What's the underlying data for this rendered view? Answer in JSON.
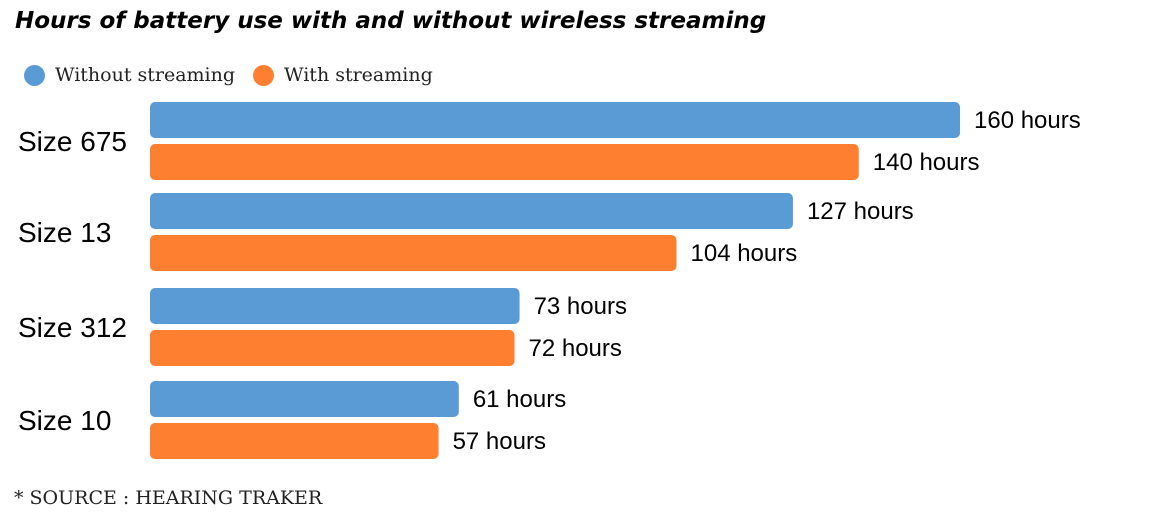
{
  "colors": {
    "without_streaming": "#5b9bd5",
    "with_streaming": "#fd7f2f"
  },
  "legend": {
    "items": [
      {
        "label": "Without streaming",
        "color": "#5b9bd5"
      },
      {
        "label": "With streaming",
        "color": "#fd7f2f"
      }
    ]
  },
  "footer": {
    "source": "* SOURCE : HEARING TRAKER"
  },
  "chart_data": {
    "type": "bar",
    "orientation": "horizontal",
    "title": "Hours of battery use with and without wireless streaming",
    "categories": [
      "Size 675",
      "Size 13",
      "Size 312",
      "Size 10"
    ],
    "series": [
      {
        "name": "Without streaming",
        "color": "#5b9bd5",
        "values": [
          160,
          127,
          73,
          61
        ],
        "labels": [
          "160 hours",
          "127 hours",
          "73 hours",
          "61 hours"
        ]
      },
      {
        "name": "With streaming",
        "color": "#fd7f2f",
        "values": [
          140,
          104,
          72,
          57
        ],
        "labels": [
          "140 hours",
          "104 hours",
          "72 hours",
          "57 hours"
        ]
      }
    ],
    "xlim": [
      0,
      160
    ],
    "grid": false,
    "legend_position": "top-left"
  }
}
